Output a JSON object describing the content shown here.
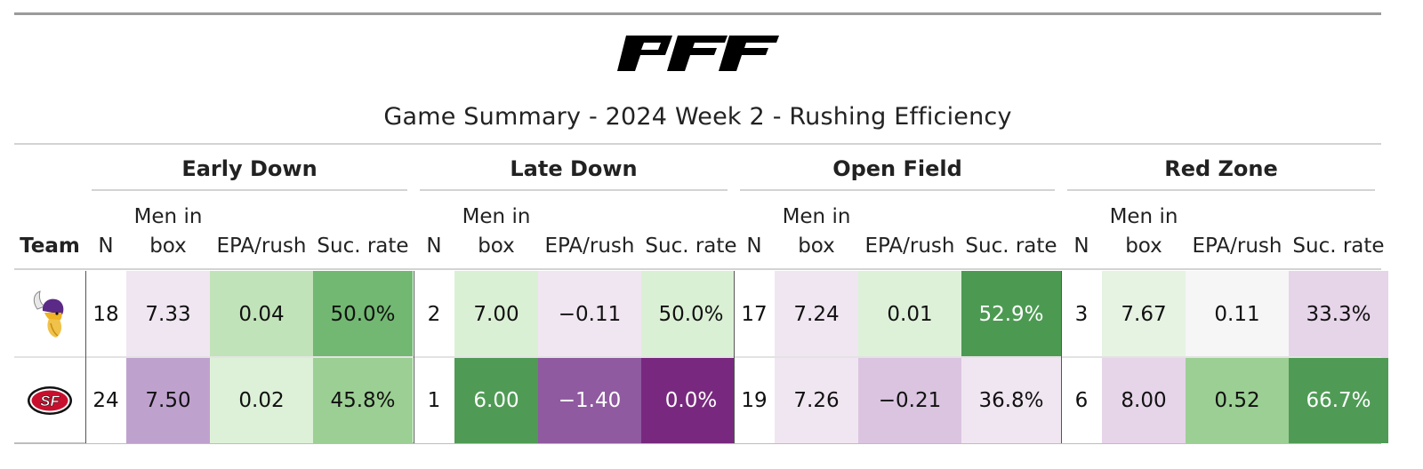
{
  "header": {
    "logo_text": "PFF",
    "title": "Game Summary - 2024 Week 2 - Rushing Efficiency"
  },
  "groups": [
    "Early Down",
    "Late Down",
    "Open Field",
    "Red Zone"
  ],
  "columns": {
    "team": "Team",
    "n": "N",
    "men_line1": "Men in",
    "men_line2": "box",
    "epa": "EPA/rush",
    "suc": "Suc. rate"
  },
  "rows": [
    {
      "team_icon": "vikings-logo-icon",
      "cells": [
        {
          "text": "18",
          "bg": "#ffffff",
          "fg": "dark"
        },
        {
          "text": "7.33",
          "bg": "#f0e6f1",
          "fg": "dark"
        },
        {
          "text": "0.04",
          "bg": "#c1e3b9",
          "fg": "dark"
        },
        {
          "text": "50.0%",
          "bg": "#72b872",
          "fg": "dark"
        },
        {
          "text": "2",
          "bg": "#ffffff",
          "fg": "dark"
        },
        {
          "text": "7.00",
          "bg": "#daf0d5",
          "fg": "dark"
        },
        {
          "text": "−0.11",
          "bg": "#f0e6f1",
          "fg": "dark"
        },
        {
          "text": "50.0%",
          "bg": "#daf0d5",
          "fg": "dark"
        },
        {
          "text": "17",
          "bg": "#ffffff",
          "fg": "dark"
        },
        {
          "text": "7.24",
          "bg": "#f0e6f1",
          "fg": "dark"
        },
        {
          "text": "0.01",
          "bg": "#ddf1d8",
          "fg": "dark"
        },
        {
          "text": "52.9%",
          "bg": "#4c9a52",
          "fg": "light"
        },
        {
          "text": "3",
          "bg": "#ffffff",
          "fg": "dark"
        },
        {
          "text": "7.67",
          "bg": "#e6f3e3",
          "fg": "dark"
        },
        {
          "text": "0.11",
          "bg": "#f6f6f6",
          "fg": "dark"
        },
        {
          "text": "33.3%",
          "bg": "#e6d4e9",
          "fg": "dark"
        }
      ]
    },
    {
      "team_icon": "49ers-logo-icon",
      "cells": [
        {
          "text": "24",
          "bg": "#ffffff",
          "fg": "dark"
        },
        {
          "text": "7.50",
          "bg": "#bfa1ce",
          "fg": "dark"
        },
        {
          "text": "0.02",
          "bg": "#ddf1d8",
          "fg": "dark"
        },
        {
          "text": "45.8%",
          "bg": "#9ccf94",
          "fg": "dark"
        },
        {
          "text": "1",
          "bg": "#ffffff",
          "fg": "dark"
        },
        {
          "text": "6.00",
          "bg": "#4f9b55",
          "fg": "light"
        },
        {
          "text": "−1.40",
          "bg": "#8f5aa0",
          "fg": "light"
        },
        {
          "text": "0.0%",
          "bg": "#78297f",
          "fg": "light"
        },
        {
          "text": "19",
          "bg": "#ffffff",
          "fg": "dark"
        },
        {
          "text": "7.26",
          "bg": "#f0e6f1",
          "fg": "dark"
        },
        {
          "text": "−0.21",
          "bg": "#dac4e0",
          "fg": "dark"
        },
        {
          "text": "36.8%",
          "bg": "#f0e6f1",
          "fg": "dark"
        },
        {
          "text": "6",
          "bg": "#ffffff",
          "fg": "dark"
        },
        {
          "text": "8.00",
          "bg": "#e6d4e9",
          "fg": "dark"
        },
        {
          "text": "0.52",
          "bg": "#9ccf94",
          "fg": "dark"
        },
        {
          "text": "66.7%",
          "bg": "#4f9b55",
          "fg": "light"
        }
      ]
    }
  ]
}
